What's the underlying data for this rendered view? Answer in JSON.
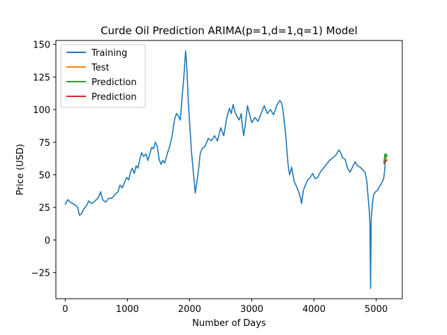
{
  "chart_data": {
    "type": "line",
    "title": "Curde Oil Prediction ARIMA(p=1,d=1,q=1) Model",
    "xlabel": "Number of Days",
    "ylabel": "Price (USD)",
    "xlim": [
      -150,
      5420
    ],
    "ylim": [
      -45,
      153
    ],
    "x_ticks": [
      0,
      1000,
      2000,
      3000,
      4000,
      5000
    ],
    "x_tick_labels": [
      "0",
      "1000",
      "2000",
      "3000",
      "4000",
      "5000"
    ],
    "y_ticks": [
      -25,
      0,
      25,
      50,
      75,
      100,
      125,
      150
    ],
    "y_tick_labels": [
      "−25",
      "0",
      "25",
      "50",
      "75",
      "100",
      "125",
      "150"
    ],
    "grid": false,
    "legend_position": "top-left",
    "series": [
      {
        "name": "Training",
        "color": "#1f77b4",
        "points": [
          [
            0,
            27
          ],
          [
            40,
            31
          ],
          [
            80,
            29
          ],
          [
            120,
            28
          ],
          [
            160,
            27
          ],
          [
            200,
            25
          ],
          [
            230,
            19
          ],
          [
            260,
            20
          ],
          [
            300,
            24
          ],
          [
            340,
            26
          ],
          [
            380,
            30
          ],
          [
            420,
            28
          ],
          [
            460,
            29
          ],
          [
            500,
            31
          ],
          [
            540,
            33
          ],
          [
            570,
            37
          ],
          [
            600,
            31
          ],
          [
            650,
            29
          ],
          [
            700,
            32
          ],
          [
            750,
            32
          ],
          [
            800,
            35
          ],
          [
            850,
            37
          ],
          [
            880,
            42
          ],
          [
            920,
            40
          ],
          [
            960,
            45
          ],
          [
            990,
            48
          ],
          [
            1020,
            46
          ],
          [
            1050,
            52
          ],
          [
            1080,
            55
          ],
          [
            1110,
            51
          ],
          [
            1140,
            57
          ],
          [
            1170,
            55
          ],
          [
            1200,
            62
          ],
          [
            1230,
            67
          ],
          [
            1260,
            64
          ],
          [
            1300,
            66
          ],
          [
            1330,
            61
          ],
          [
            1360,
            66
          ],
          [
            1390,
            71
          ],
          [
            1420,
            70
          ],
          [
            1450,
            75
          ],
          [
            1480,
            72
          ],
          [
            1510,
            62
          ],
          [
            1540,
            58
          ],
          [
            1570,
            61
          ],
          [
            1600,
            59
          ],
          [
            1640,
            66
          ],
          [
            1680,
            72
          ],
          [
            1720,
            80
          ],
          [
            1760,
            93
          ],
          [
            1790,
            97
          ],
          [
            1820,
            95
          ],
          [
            1850,
            92
          ],
          [
            1880,
            110
          ],
          [
            1910,
            126
          ],
          [
            1935,
            145
          ],
          [
            1950,
            137
          ],
          [
            1965,
            123
          ],
          [
            1980,
            105
          ],
          [
            2000,
            90
          ],
          [
            2030,
            68
          ],
          [
            2060,
            52
          ],
          [
            2075,
            45
          ],
          [
            2090,
            36
          ],
          [
            2110,
            42
          ],
          [
            2140,
            52
          ],
          [
            2170,
            66
          ],
          [
            2200,
            70
          ],
          [
            2250,
            72
          ],
          [
            2300,
            78
          ],
          [
            2350,
            76
          ],
          [
            2400,
            80
          ],
          [
            2450,
            76
          ],
          [
            2500,
            86
          ],
          [
            2550,
            80
          ],
          [
            2600,
            94
          ],
          [
            2640,
            101
          ],
          [
            2670,
            97
          ],
          [
            2700,
            104
          ],
          [
            2730,
            98
          ],
          [
            2760,
            95
          ],
          [
            2800,
            92
          ],
          [
            2830,
            97
          ],
          [
            2850,
            87
          ],
          [
            2870,
            80
          ],
          [
            2900,
            90
          ],
          [
            2930,
            103
          ],
          [
            2960,
            97
          ],
          [
            3000,
            90
          ],
          [
            3050,
            94
          ],
          [
            3100,
            91
          ],
          [
            3150,
            97
          ],
          [
            3200,
            103
          ],
          [
            3250,
            97
          ],
          [
            3300,
            100
          ],
          [
            3350,
            96
          ],
          [
            3400,
            103
          ],
          [
            3450,
            107
          ],
          [
            3480,
            105
          ],
          [
            3500,
            100
          ],
          [
            3520,
            92
          ],
          [
            3550,
            78
          ],
          [
            3570,
            65
          ],
          [
            3590,
            55
          ],
          [
            3610,
            50
          ],
          [
            3640,
            56
          ],
          [
            3680,
            45
          ],
          [
            3720,
            41
          ],
          [
            3760,
            36
          ],
          [
            3780,
            33
          ],
          [
            3800,
            28
          ],
          [
            3830,
            38
          ],
          [
            3860,
            42
          ],
          [
            3900,
            46
          ],
          [
            3940,
            48
          ],
          [
            3980,
            51
          ],
          [
            4020,
            47
          ],
          [
            4060,
            48
          ],
          [
            4100,
            52
          ],
          [
            4150,
            55
          ],
          [
            4200,
            58
          ],
          [
            4250,
            61
          ],
          [
            4300,
            63
          ],
          [
            4350,
            65
          ],
          [
            4400,
            69
          ],
          [
            4430,
            67
          ],
          [
            4460,
            63
          ],
          [
            4500,
            62
          ],
          [
            4540,
            55
          ],
          [
            4580,
            52
          ],
          [
            4620,
            56
          ],
          [
            4660,
            60
          ],
          [
            4700,
            57
          ],
          [
            4740,
            56
          ],
          [
            4780,
            54
          ],
          [
            4820,
            52
          ],
          [
            4850,
            45
          ],
          [
            4870,
            33
          ],
          [
            4890,
            22
          ],
          [
            4900,
            12
          ],
          [
            4910,
            -37
          ],
          [
            4920,
            16
          ],
          [
            4940,
            28
          ],
          [
            4960,
            35
          ],
          [
            4990,
            37
          ],
          [
            5020,
            38
          ],
          [
            5050,
            41
          ],
          [
            5080,
            43
          ],
          [
            5100,
            45
          ],
          [
            5120,
            47
          ],
          [
            5140,
            55
          ],
          [
            5150,
            62
          ]
        ]
      },
      {
        "name": "Test",
        "color": "#ff7f0e",
        "points": [
          [
            5125,
            60
          ],
          [
            5135,
            63
          ],
          [
            5145,
            62
          ],
          [
            5155,
            64
          ],
          [
            5165,
            62
          ],
          [
            5175,
            61
          ]
        ]
      },
      {
        "name": "Prediction",
        "color": "#2ca02c",
        "points": [
          [
            5125,
            58
          ],
          [
            5135,
            64
          ],
          [
            5140,
            66
          ],
          [
            5150,
            63
          ],
          [
            5160,
            66
          ],
          [
            5170,
            64
          ],
          [
            5180,
            65
          ]
        ]
      },
      {
        "name": "Prediction",
        "color": "#d62728",
        "points": [
          [
            5125,
            59
          ],
          [
            5145,
            60
          ],
          [
            5165,
            61
          ],
          [
            5180,
            61
          ]
        ]
      }
    ]
  }
}
